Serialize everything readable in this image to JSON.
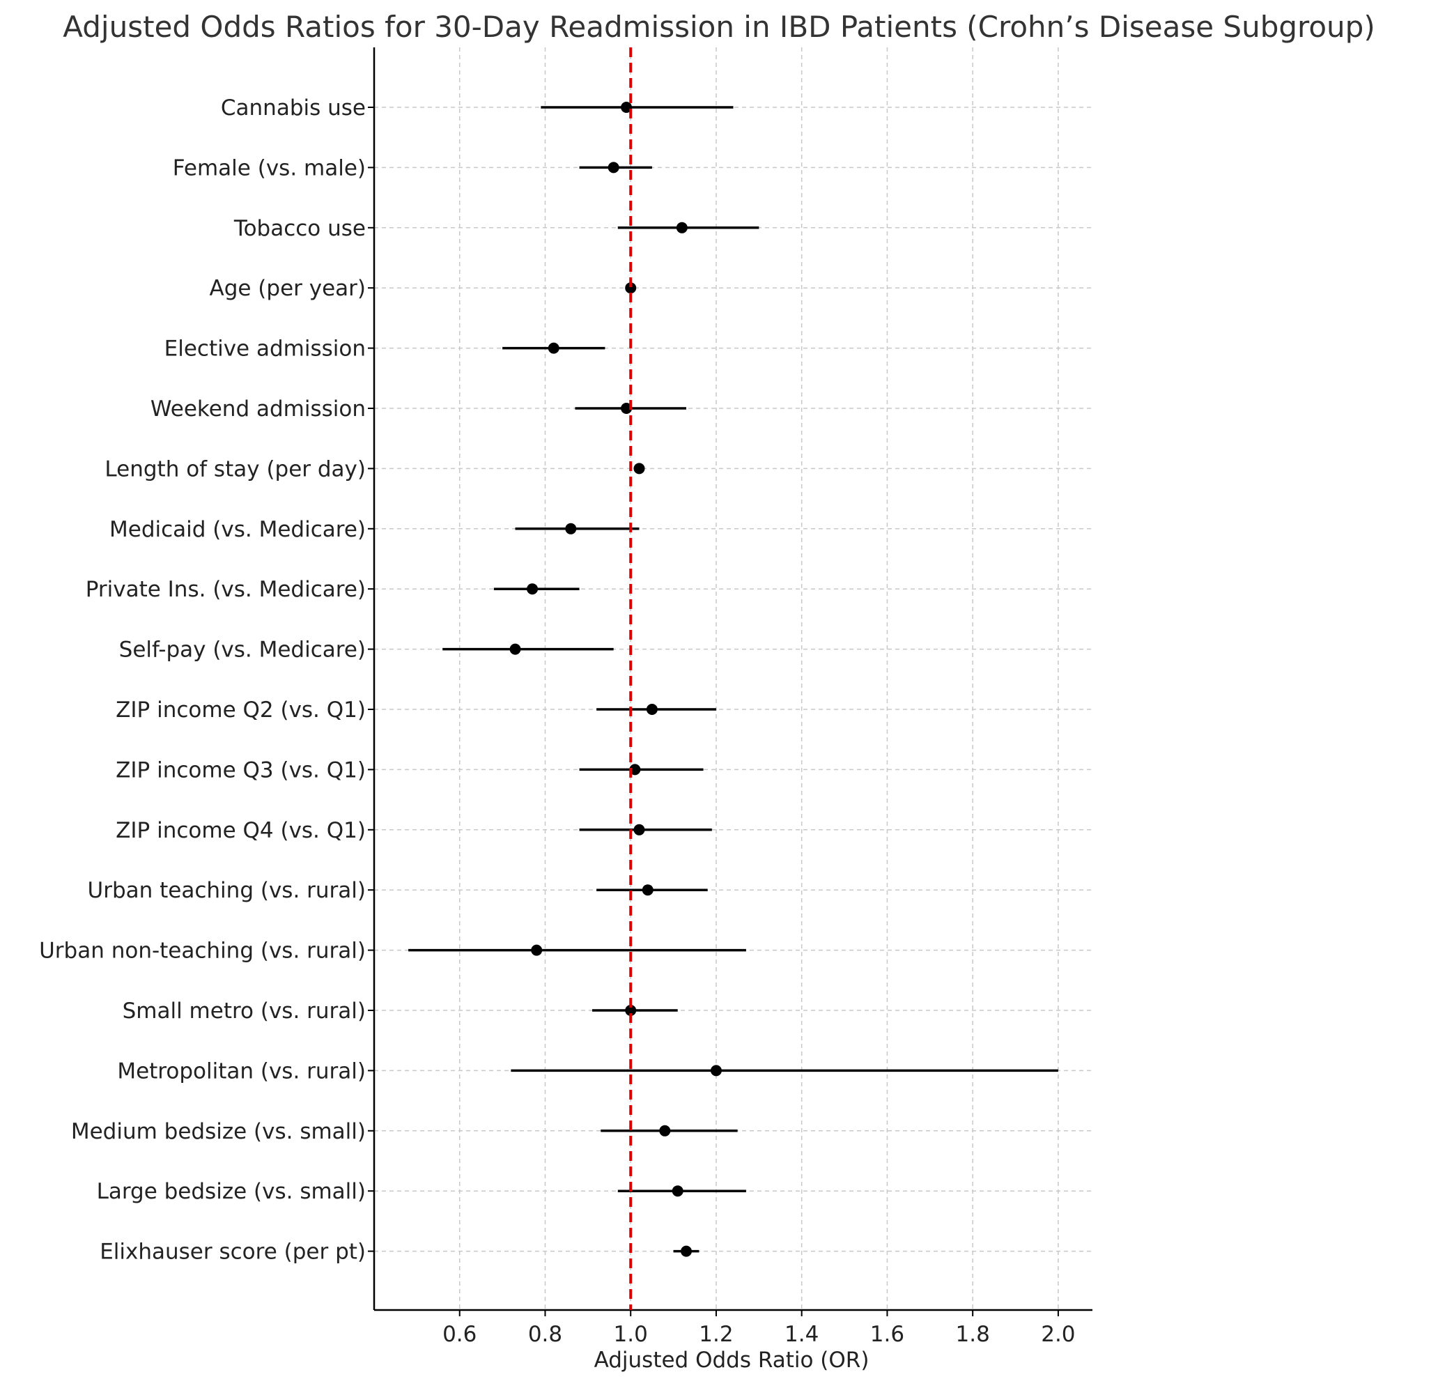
{
  "chart_data": {
    "type": "forest",
    "title": "Adjusted Odds Ratios for 30-Day Readmission in IBD Patients (Crohn’s Disease Subgroup)",
    "xlabel": "Adjusted Odds Ratio (OR)",
    "ylabel": "",
    "xlim": [
      0.4,
      2.08
    ],
    "xticks": [
      0.6,
      0.8,
      1.0,
      1.2,
      1.4,
      1.6,
      1.8,
      2.0
    ],
    "xtick_labels": [
      "0.6",
      "0.8",
      "1.0",
      "1.2",
      "1.4",
      "1.6",
      "1.8",
      "2.0"
    ],
    "reference_line": {
      "x": 1.0,
      "color": "#dd0000",
      "style": "dashed"
    },
    "grid": true,
    "point_color": "#000000",
    "rows": [
      {
        "label": "Cannabis use",
        "or": 0.99,
        "lo": 0.79,
        "hi": 1.24
      },
      {
        "label": "Female (vs. male)",
        "or": 0.96,
        "lo": 0.88,
        "hi": 1.05
      },
      {
        "label": "Tobacco use",
        "or": 1.12,
        "lo": 0.97,
        "hi": 1.3
      },
      {
        "label": "Age (per year)",
        "or": 1.0,
        "lo": 0.995,
        "hi": 1.005
      },
      {
        "label": "Elective admission",
        "or": 0.82,
        "lo": 0.7,
        "hi": 0.94
      },
      {
        "label": "Weekend admission",
        "or": 0.99,
        "lo": 0.87,
        "hi": 1.13
      },
      {
        "label": "Length of stay (per day)",
        "or": 1.02,
        "lo": 1.015,
        "hi": 1.025
      },
      {
        "label": "Medicaid (vs. Medicare)",
        "or": 0.86,
        "lo": 0.73,
        "hi": 1.02
      },
      {
        "label": "Private Ins. (vs. Medicare)",
        "or": 0.77,
        "lo": 0.68,
        "hi": 0.88
      },
      {
        "label": "Self-pay (vs. Medicare)",
        "or": 0.73,
        "lo": 0.56,
        "hi": 0.96
      },
      {
        "label": "ZIP income Q2 (vs. Q1)",
        "or": 1.05,
        "lo": 0.92,
        "hi": 1.2
      },
      {
        "label": "ZIP income Q3 (vs. Q1)",
        "or": 1.01,
        "lo": 0.88,
        "hi": 1.17
      },
      {
        "label": "ZIP income Q4 (vs. Q1)",
        "or": 1.02,
        "lo": 0.88,
        "hi": 1.19
      },
      {
        "label": "Urban teaching (vs. rural)",
        "or": 1.04,
        "lo": 0.92,
        "hi": 1.18
      },
      {
        "label": "Urban non-teaching (vs. rural)",
        "or": 0.78,
        "lo": 0.48,
        "hi": 1.27
      },
      {
        "label": "Small metro (vs. rural)",
        "or": 1.0,
        "lo": 0.91,
        "hi": 1.11
      },
      {
        "label": "Metropolitan (vs. rural)",
        "or": 1.2,
        "lo": 0.72,
        "hi": 2.0
      },
      {
        "label": "Medium bedsize (vs. small)",
        "or": 1.08,
        "lo": 0.93,
        "hi": 1.25
      },
      {
        "label": "Large bedsize (vs. small)",
        "or": 1.11,
        "lo": 0.97,
        "hi": 1.27
      },
      {
        "label": "Elixhauser score (per pt)",
        "or": 1.13,
        "lo": 1.1,
        "hi": 1.16
      }
    ]
  }
}
